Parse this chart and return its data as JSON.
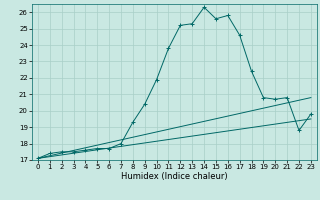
{
  "title": "",
  "xlabel": "Humidex (Indice chaleur)",
  "ylabel": "",
  "xlim": [
    -0.5,
    23.5
  ],
  "ylim": [
    17,
    26.5
  ],
  "yticks": [
    17,
    18,
    19,
    20,
    21,
    22,
    23,
    24,
    25,
    26
  ],
  "xticks": [
    0,
    1,
    2,
    3,
    4,
    5,
    6,
    7,
    8,
    9,
    10,
    11,
    12,
    13,
    14,
    15,
    16,
    17,
    18,
    19,
    20,
    21,
    22,
    23
  ],
  "bg_color": "#c9e8e2",
  "grid_color": "#a8cfc8",
  "line_color": "#006866",
  "main_line_x": [
    0,
    1,
    2,
    3,
    4,
    5,
    6,
    7,
    8,
    9,
    10,
    11,
    12,
    13,
    14,
    15,
    16,
    17,
    18,
    19,
    20,
    21,
    22,
    23
  ],
  "main_line_y": [
    17.1,
    17.4,
    17.5,
    17.5,
    17.6,
    17.7,
    17.7,
    18.0,
    19.3,
    20.4,
    21.9,
    23.8,
    25.2,
    25.3,
    26.3,
    25.6,
    25.8,
    24.6,
    22.4,
    20.8,
    20.7,
    20.8,
    18.8,
    19.8
  ],
  "line2_x": [
    0,
    23
  ],
  "line2_y": [
    17.1,
    19.5
  ],
  "line3_x": [
    0,
    23
  ],
  "line3_y": [
    17.1,
    20.8
  ],
  "tick_fontsize": 5,
  "label_fontsize": 6
}
